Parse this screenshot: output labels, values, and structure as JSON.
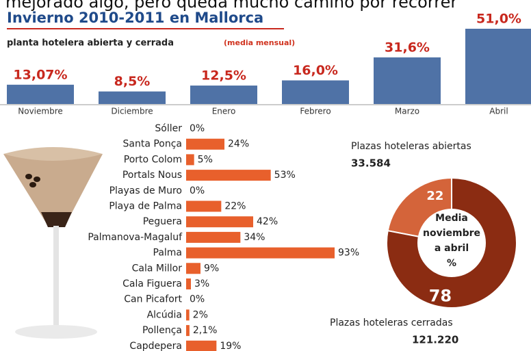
{
  "header": {
    "text": "mejorado algo, pero queda mucho camino por recorrer"
  },
  "chart_data": [
    {
      "type": "bar",
      "title": "Invierno 2010-2011 en Mallorca",
      "subtitle": "planta hotelera abierta y cerrada",
      "subtitle_note": "(media mensual)",
      "categories": [
        "Noviembre",
        "Diciembre",
        "Enero",
        "Febrero",
        "Marzo",
        "Abril"
      ],
      "values": [
        13.07,
        8.5,
        12.5,
        16.0,
        31.6,
        51.0
      ],
      "value_labels": [
        "13,07%",
        "8,5%",
        "12,5%",
        "16,0%",
        "31,6%",
        "51,0%"
      ],
      "color": "#4f72a6"
    },
    {
      "type": "hbar",
      "categories": [
        "Sóller",
        "Santa Ponça",
        "Porto Colom",
        "Portals Nous",
        "Playas de Muro",
        "Playa de Palma",
        "Peguera",
        "Palmanova-Magaluf",
        "Palma",
        "Cala Millor",
        "Cala Figuera",
        "Can Picafort",
        "Alcúdia",
        "Pollença",
        "Capdepera"
      ],
      "values": [
        0,
        24,
        5,
        53,
        0,
        22,
        42,
        34,
        93,
        9,
        3,
        0,
        2,
        2.1,
        19
      ],
      "value_labels": [
        "0%",
        "24%",
        "5%",
        "53%",
        "0%",
        "22%",
        "42%",
        "34%",
        "93%",
        "9%",
        "3%",
        "0%",
        "2%",
        "2,1%",
        "19%"
      ],
      "color": "#e8602c"
    },
    {
      "type": "donut",
      "categories": [
        "Plazas hoteleras abiertas",
        "Plazas hoteleras cerradas"
      ],
      "counts": [
        "33.584",
        "121.220"
      ],
      "values": [
        22,
        78
      ],
      "colors": [
        "#d4643a",
        "#8b2c12"
      ],
      "center_label": [
        "Media",
        "noviembre",
        "a abril",
        "%"
      ]
    }
  ]
}
